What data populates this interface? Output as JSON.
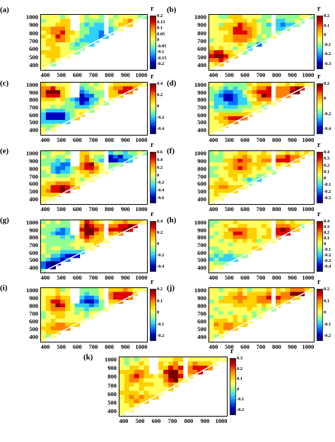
{
  "figure": {
    "y_ticks": [
      "1000",
      "900",
      "800",
      "700",
      "600",
      "500",
      "400"
    ],
    "x_ticks": [
      "400",
      "500",
      "600",
      "700",
      "800",
      "900",
      "1000"
    ],
    "x_ticks_k": [
      "400",
      "500",
      "600",
      "700",
      "800",
      "900",
      "1000"
    ],
    "colorbar_unit": "r"
  },
  "panels": [
    {
      "label": "(a)",
      "cticks": [
        "0.2",
        "0.15",
        "0.1",
        "0.05",
        "0",
        "-0.05",
        "-0.1",
        "-0.15",
        "-0.2"
      ]
    },
    {
      "label": "(b)",
      "cticks": [
        "0.2",
        "0.1",
        "0",
        "-0.1",
        "-0.2",
        "-0.3"
      ]
    },
    {
      "label": "(c)",
      "cticks": [
        "0.4",
        "0.2",
        "0",
        "-0.2",
        "-0.4"
      ]
    },
    {
      "label": "(d)",
      "cticks": [
        "0.2",
        "0",
        "-0.2",
        "-0.4"
      ]
    },
    {
      "label": "(e)",
      "cticks": [
        "0.6",
        "0.4",
        "0.2",
        "0",
        "-0.2",
        "-0.4",
        "-0.6"
      ]
    },
    {
      "label": "(f)",
      "cticks": [
        "0.4",
        "0.3",
        "0.2",
        "0.1",
        "0",
        "-0.1",
        "-0.2",
        "-0.3"
      ]
    },
    {
      "label": "(g)",
      "cticks": [
        "0.4",
        "0.2",
        "0",
        "-0.2",
        "-0.4"
      ]
    },
    {
      "label": "(h)",
      "cticks": [
        "0.4",
        "0.3",
        "0.2",
        "0.1",
        "0",
        "-0.1",
        "-0.2",
        "-0.3",
        "-0.4"
      ]
    },
    {
      "label": "(i)",
      "cticks": [
        "0.2",
        "0.1",
        "0",
        "-0.1",
        "-0.2"
      ]
    },
    {
      "label": "(j)",
      "cticks": [
        "0.2",
        "0.1",
        "0",
        "-0.1",
        "-0.2"
      ]
    },
    {
      "label": "(k)",
      "cticks": [
        "0.3",
        "0.2",
        "0.1",
        "0",
        "-0.1",
        "-0.2"
      ]
    }
  ],
  "chart_data": {
    "type": "heatmap",
    "x_range": [
      380,
      1050
    ],
    "y_range": [
      380,
      1050
    ],
    "x_ticks": [
      400,
      500,
      600,
      700,
      800,
      900,
      1000
    ],
    "y_ticks": [
      400,
      500,
      600,
      700,
      800,
      900,
      1000
    ],
    "colorbar_label": "r",
    "colormap": [
      "#00006a",
      "#0000c0",
      "#0070ff",
      "#30d0ff",
      "#90ff90",
      "#ffff60",
      "#ffd000",
      "#ff8000",
      "#e00000",
      "#7a0000"
    ],
    "layout": "upper-left triangular correlation maps, 11 panels (a)-(k)",
    "colorbar_ranges": {
      "a": [
        -0.2,
        0.2
      ],
      "b": [
        -0.3,
        0.2
      ],
      "c": [
        -0.4,
        0.4
      ],
      "d": [
        -0.4,
        0.2
      ],
      "e": [
        -0.6,
        0.6
      ],
      "f": [
        -0.3,
        0.4
      ],
      "g": [
        -0.4,
        0.4
      ],
      "h": [
        -0.4,
        0.4
      ],
      "i": [
        -0.2,
        0.2
      ],
      "j": [
        -0.2,
        0.2
      ],
      "k": [
        -0.2,
        0.3
      ]
    }
  }
}
